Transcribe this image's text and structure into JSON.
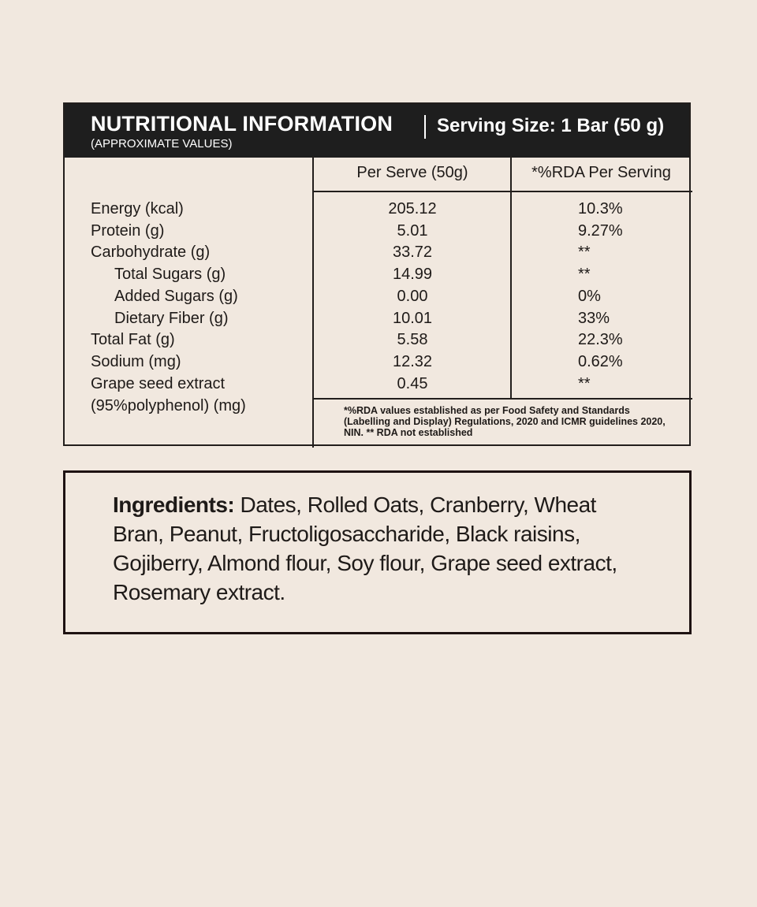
{
  "header": {
    "title": "NUTRITIONAL INFORMATION",
    "serving_size": "Serving Size: 1 Bar (50 g)",
    "subtitle": "(APPROXIMATE VALUES)"
  },
  "columns": [
    "Per Serve (50g)",
    "*%RDA Per Serving"
  ],
  "rows": [
    {
      "label": "Energy (kcal)",
      "per_serve": "205.12",
      "rda": "10.3%",
      "indent": false
    },
    {
      "label": "Protein (g)",
      "per_serve": "5.01",
      "rda": "9.27%",
      "indent": false
    },
    {
      "label": "Carbohydrate (g)",
      "per_serve": "33.72",
      "rda": "**",
      "indent": false
    },
    {
      "label": "Total Sugars (g)",
      "per_serve": "14.99",
      "rda": "**",
      "indent": true
    },
    {
      "label": "Added Sugars (g)",
      "per_serve": "0.00",
      "rda": "0%",
      "indent": true
    },
    {
      "label": "Dietary Fiber (g)",
      "per_serve": "10.01",
      "rda": "33%",
      "indent": true
    },
    {
      "label": "Total Fat (g)",
      "per_serve": "5.58",
      "rda": "22.3%",
      "indent": false
    },
    {
      "label": "Sodium (mg)",
      "per_serve": "12.32",
      "rda": "0.62%",
      "indent": false
    },
    {
      "label": "Grape seed extract",
      "per_serve": "0.45",
      "rda": "**",
      "indent": false
    }
  ],
  "last_label_line2": "(95%polyphenol) (mg)",
  "footnote": "*%RDA values established as per Food Safety and Standards (Labelling and Display) Regulations, 2020 and ICMR guidelines 2020, NIN. ** RDA not established",
  "ingredients": {
    "label": "Ingredients:",
    "text": " Dates, Rolled Oats, Cranberry, Wheat Bran, Peanut, Fructoligosaccharide, Black raisins, Gojiberry, Almond flour, Soy flour, Grape seed extract, Rosemary extract."
  },
  "colors": {
    "background": "#f1e8df",
    "header": "#1e1e1e",
    "text": "#1e1a18"
  }
}
